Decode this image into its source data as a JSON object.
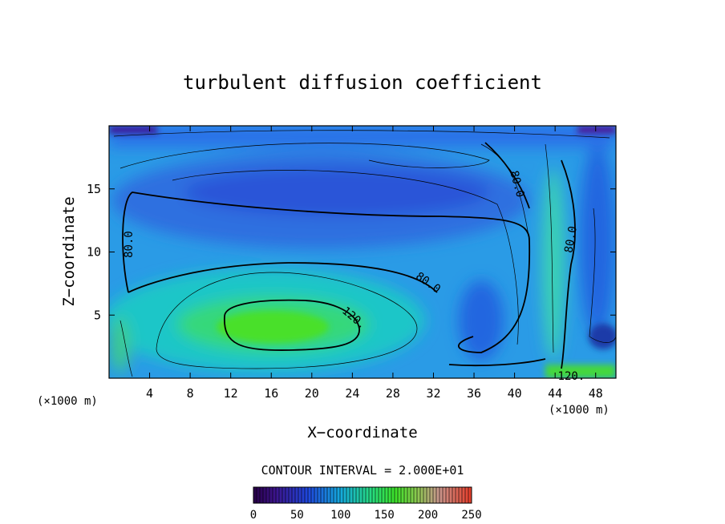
{
  "chart_data": {
    "type": "heatmap",
    "title": "turbulent diffusion coefficient",
    "xlabel": "X−coordinate",
    "ylabel": "Z−coordinate",
    "x_unit": "(×1000 m)",
    "z_unit": "(×1000 m)",
    "xlim": [
      0,
      50
    ],
    "ylim": [
      0,
      20
    ],
    "x_ticks": [
      4,
      8,
      12,
      16,
      20,
      24,
      28,
      32,
      36,
      40,
      44,
      48
    ],
    "y_ticks": [
      5,
      10,
      15
    ],
    "contour_interval_text": "CONTOUR INTERVAL = 2.000E+01",
    "contour_interval": 20,
    "contour_labels": [
      {
        "text": "80.0",
        "x": 1.9,
        "z": 10.6,
        "angle": -90
      },
      {
        "text": "80.0",
        "x": 31.5,
        "z": 7.6,
        "angle": 35
      },
      {
        "text": "80.0",
        "x": 40.3,
        "z": 15.4,
        "angle": 75
      },
      {
        "text": "80.0",
        "x": 45.5,
        "z": 11.0,
        "angle": -80
      },
      {
        "text": "120.",
        "x": 24.2,
        "z": 4.8,
        "angle": 40
      },
      {
        "text": "120.",
        "x": 45.6,
        "z": 0.2,
        "angle": 0
      }
    ],
    "colorbar": {
      "min": 0,
      "max": 250,
      "ticks": [
        0,
        50,
        100,
        150,
        200,
        250
      ]
    }
  },
  "colors": {
    "low": "#3a1a8a",
    "mid_low": "#1e6bdc",
    "mid": "#14bcd8",
    "high": "#2ee23a",
    "max": "#e62a1a"
  }
}
